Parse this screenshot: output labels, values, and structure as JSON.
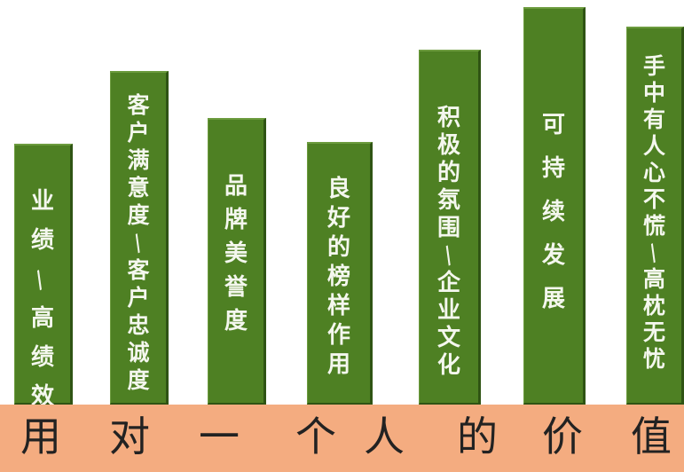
{
  "bars": [
    {
      "label": "业绩/高绩效"
    },
    {
      "label": "客户满意度/客户忠诚度"
    },
    {
      "label": "品牌美誉度"
    },
    {
      "label": "良好的榜样作用"
    },
    {
      "label": "积极的氛围/企业文化"
    },
    {
      "label": "可持续发展"
    },
    {
      "label": "手中有人心不慌/高枕无忧"
    }
  ],
  "footer": {
    "chars": [
      "用",
      "对",
      "一",
      "个",
      "人",
      "的",
      "价",
      "值"
    ]
  },
  "colors": {
    "bar": "#4e8023",
    "bar_text": "#f4f7ee",
    "footer_bg": "#f4ac80",
    "footer_text": "#222222"
  }
}
